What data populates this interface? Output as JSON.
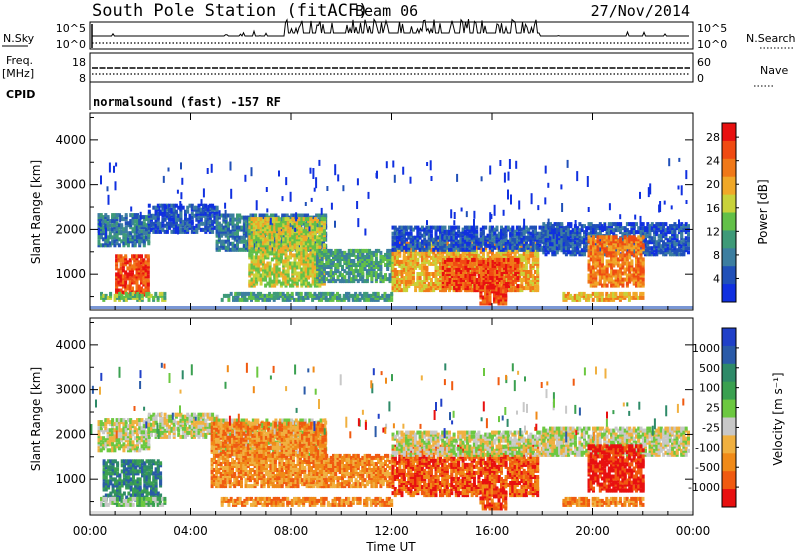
{
  "header": {
    "station": "South Pole Station (fitACF)",
    "beam": "Beam 06",
    "date": "27/Nov/2014"
  },
  "top_panels": {
    "nsky_label": "N.Sky",
    "nsky_ticks": [
      "10^5",
      "10^0"
    ],
    "nsearch_label": "N.Search",
    "nsearch_ticks": [
      "10^5",
      "10^0"
    ],
    "freq_label": "Freq.",
    "freq_unit": "[MHz]",
    "freq_ticks": [
      "18",
      "8"
    ],
    "nave_label": "Nave",
    "nave_ticks": [
      "60",
      "0"
    ],
    "cpid_label": "CPID",
    "cpid_text": "normalsound (fast) -157 RF"
  },
  "chart_data": [
    {
      "type": "heatmap",
      "panel": "power",
      "ylabel": "Slant Range [km]",
      "xlabel": "",
      "y_ticks": [
        "1000",
        "2000",
        "3000",
        "4000"
      ],
      "ylim": [
        200,
        4600
      ],
      "xlim": [
        0,
        24
      ],
      "colorbar_label": "Power [dB]",
      "colorbar_ticks": [
        "4",
        "8",
        "12",
        "16",
        "20",
        "24",
        "28"
      ],
      "colorbar_colors": [
        "#1030e0",
        "#2050b8",
        "#3c7ea0",
        "#3e9a78",
        "#62c048",
        "#c8d23a",
        "#f0a828",
        "#f07818",
        "#f04a12",
        "#e81010"
      ],
      "echo_regions": [
        {
          "t0": 0.3,
          "t1": 2.3,
          "r0": 1600,
          "r1": 2300,
          "level": 2
        },
        {
          "t0": 1.0,
          "t1": 2.3,
          "r0": 500,
          "r1": 1400,
          "level": 8
        },
        {
          "t0": 2.3,
          "t1": 5.0,
          "r0": 1900,
          "r1": 2500,
          "level": 1
        },
        {
          "t0": 5.0,
          "t1": 9.4,
          "r0": 1500,
          "r1": 2300,
          "level": 2
        },
        {
          "t0": 6.3,
          "t1": 9.3,
          "r0": 700,
          "r1": 2200,
          "level": 5
        },
        {
          "t0": 9.0,
          "t1": 12.0,
          "r0": 800,
          "r1": 1500,
          "level": 3
        },
        {
          "t0": 12.0,
          "t1": 17.8,
          "r0": 600,
          "r1": 1700,
          "level": 6
        },
        {
          "t0": 14.0,
          "t1": 17.0,
          "r0": 600,
          "r1": 1300,
          "level": 8
        },
        {
          "t0": 15.5,
          "t1": 16.5,
          "r0": 300,
          "r1": 700,
          "level": 8
        },
        {
          "t0": 12.0,
          "t1": 19.0,
          "r0": 1500,
          "r1": 2000,
          "level": 1
        },
        {
          "t0": 18.0,
          "t1": 23.8,
          "r0": 1400,
          "r1": 2100,
          "level": 1
        },
        {
          "t0": 19.8,
          "t1": 22.0,
          "r0": 700,
          "r1": 1800,
          "level": 7
        },
        {
          "t0": 0.4,
          "t1": 3.0,
          "r0": 380,
          "r1": 520,
          "level": 4
        },
        {
          "t0": 5.2,
          "t1": 12.0,
          "r0": 380,
          "r1": 520,
          "level": 3
        },
        {
          "t0": 18.8,
          "t1": 22.0,
          "r0": 380,
          "r1": 520,
          "level": 6
        }
      ]
    },
    {
      "type": "heatmap",
      "panel": "velocity",
      "ylabel": "Slant Range [km]",
      "xlabel": "Time UT",
      "x_ticks": [
        "00:00",
        "04:00",
        "08:00",
        "12:00",
        "16:00",
        "20:00",
        "00:00"
      ],
      "y_ticks": [
        "1000",
        "2000",
        "3000",
        "4000"
      ],
      "ylim": [
        200,
        4600
      ],
      "xlim": [
        0,
        24
      ],
      "colorbar_label": "Velocity [m s⁻¹]",
      "colorbar_ticks": [
        "1000",
        "500",
        "100",
        "25",
        "-25",
        "-100",
        "-500",
        "-1000"
      ],
      "colorbar_colors": [
        "#2040c8",
        "#2a5aa8",
        "#2e8a68",
        "#3aa050",
        "#6cc840",
        "#c8c8c8",
        "#f0b040",
        "#f08a18",
        "#f05a10",
        "#e81010"
      ],
      "echo_regions": [
        {
          "t0": 0.3,
          "t1": 2.3,
          "r0": 1600,
          "r1": 2300,
          "level": 5
        },
        {
          "t0": 0.5,
          "t1": 2.8,
          "r0": 500,
          "r1": 1400,
          "level": 2
        },
        {
          "t0": 2.3,
          "t1": 5.0,
          "r0": 1900,
          "r1": 2400,
          "level": 5
        },
        {
          "t0": 5.0,
          "t1": 9.4,
          "r0": 1500,
          "r1": 2300,
          "level": 5
        },
        {
          "t0": 4.8,
          "t1": 9.3,
          "r0": 800,
          "r1": 2200,
          "level": 7
        },
        {
          "t0": 9.0,
          "t1": 12.0,
          "r0": 800,
          "r1": 1500,
          "level": 7
        },
        {
          "t0": 12.0,
          "t1": 17.8,
          "r0": 600,
          "r1": 1700,
          "level": 8
        },
        {
          "t0": 15.5,
          "t1": 16.5,
          "r0": 300,
          "r1": 800,
          "level": 8
        },
        {
          "t0": 12.0,
          "t1": 19.0,
          "r0": 1500,
          "r1": 2000,
          "level": 5
        },
        {
          "t0": 18.0,
          "t1": 23.8,
          "r0": 1500,
          "r1": 2100,
          "level": 5
        },
        {
          "t0": 19.8,
          "t1": 22.0,
          "r0": 700,
          "r1": 1700,
          "level": 9
        },
        {
          "t0": 0.4,
          "t1": 3.0,
          "r0": 380,
          "r1": 520,
          "level": 4
        },
        {
          "t0": 5.2,
          "t1": 12.0,
          "r0": 380,
          "r1": 520,
          "level": 7
        },
        {
          "t0": 18.8,
          "t1": 22.0,
          "r0": 380,
          "r1": 520,
          "level": 7
        }
      ]
    }
  ]
}
